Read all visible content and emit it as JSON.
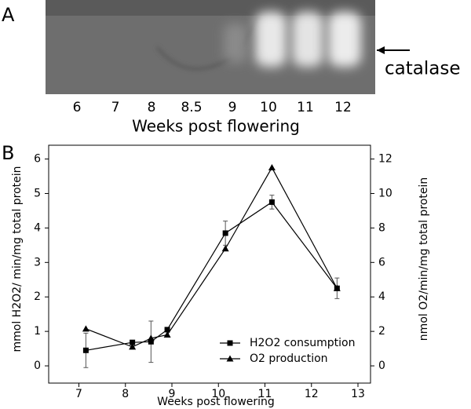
{
  "panel_a": {
    "label": "A",
    "lanes": [
      "6",
      "7",
      "8",
      "8.5",
      "9",
      "10",
      "11",
      "12"
    ],
    "xlabel": "Weeks post flowering",
    "band_label": "catalase"
  },
  "chart_data": {
    "type": "line",
    "panel_label": "B",
    "xlabel": "Weeks post flowering",
    "ylabel": "mmol H2O2/ min/mg total protein",
    "y2label": "nmol O2/min/mg total protein",
    "x": [
      7.15,
      8.15,
      8.55,
      8.9,
      10.15,
      11.15,
      12.55
    ],
    "series": [
      {
        "name": "H2O2 consumption",
        "color": "#000000",
        "marker": "square",
        "values": [
          0.45,
          0.68,
          0.7,
          1.05,
          3.85,
          4.75,
          2.25
        ],
        "errors": [
          0.5,
          0.05,
          0.6,
          0.05,
          0.35,
          0.2,
          0.3
        ]
      },
      {
        "name": "O2 production",
        "color": "#000000",
        "marker": "triangle",
        "axis": "y2",
        "values": [
          2.15,
          1.1,
          1.6,
          1.8,
          6.8,
          11.5,
          4.5
        ]
      }
    ],
    "xlim": [
      6.35,
      13.27
    ],
    "xticks": [
      7,
      8,
      9,
      10,
      11,
      12,
      13
    ],
    "ylim": [
      -0.5,
      6.4
    ],
    "yticks": [
      0,
      1,
      2,
      3,
      4,
      5,
      6
    ],
    "y2lim": [
      -1,
      12.8
    ],
    "y2ticks": [
      0,
      2,
      4,
      6,
      8,
      10,
      12
    ],
    "legend": "lower right"
  }
}
